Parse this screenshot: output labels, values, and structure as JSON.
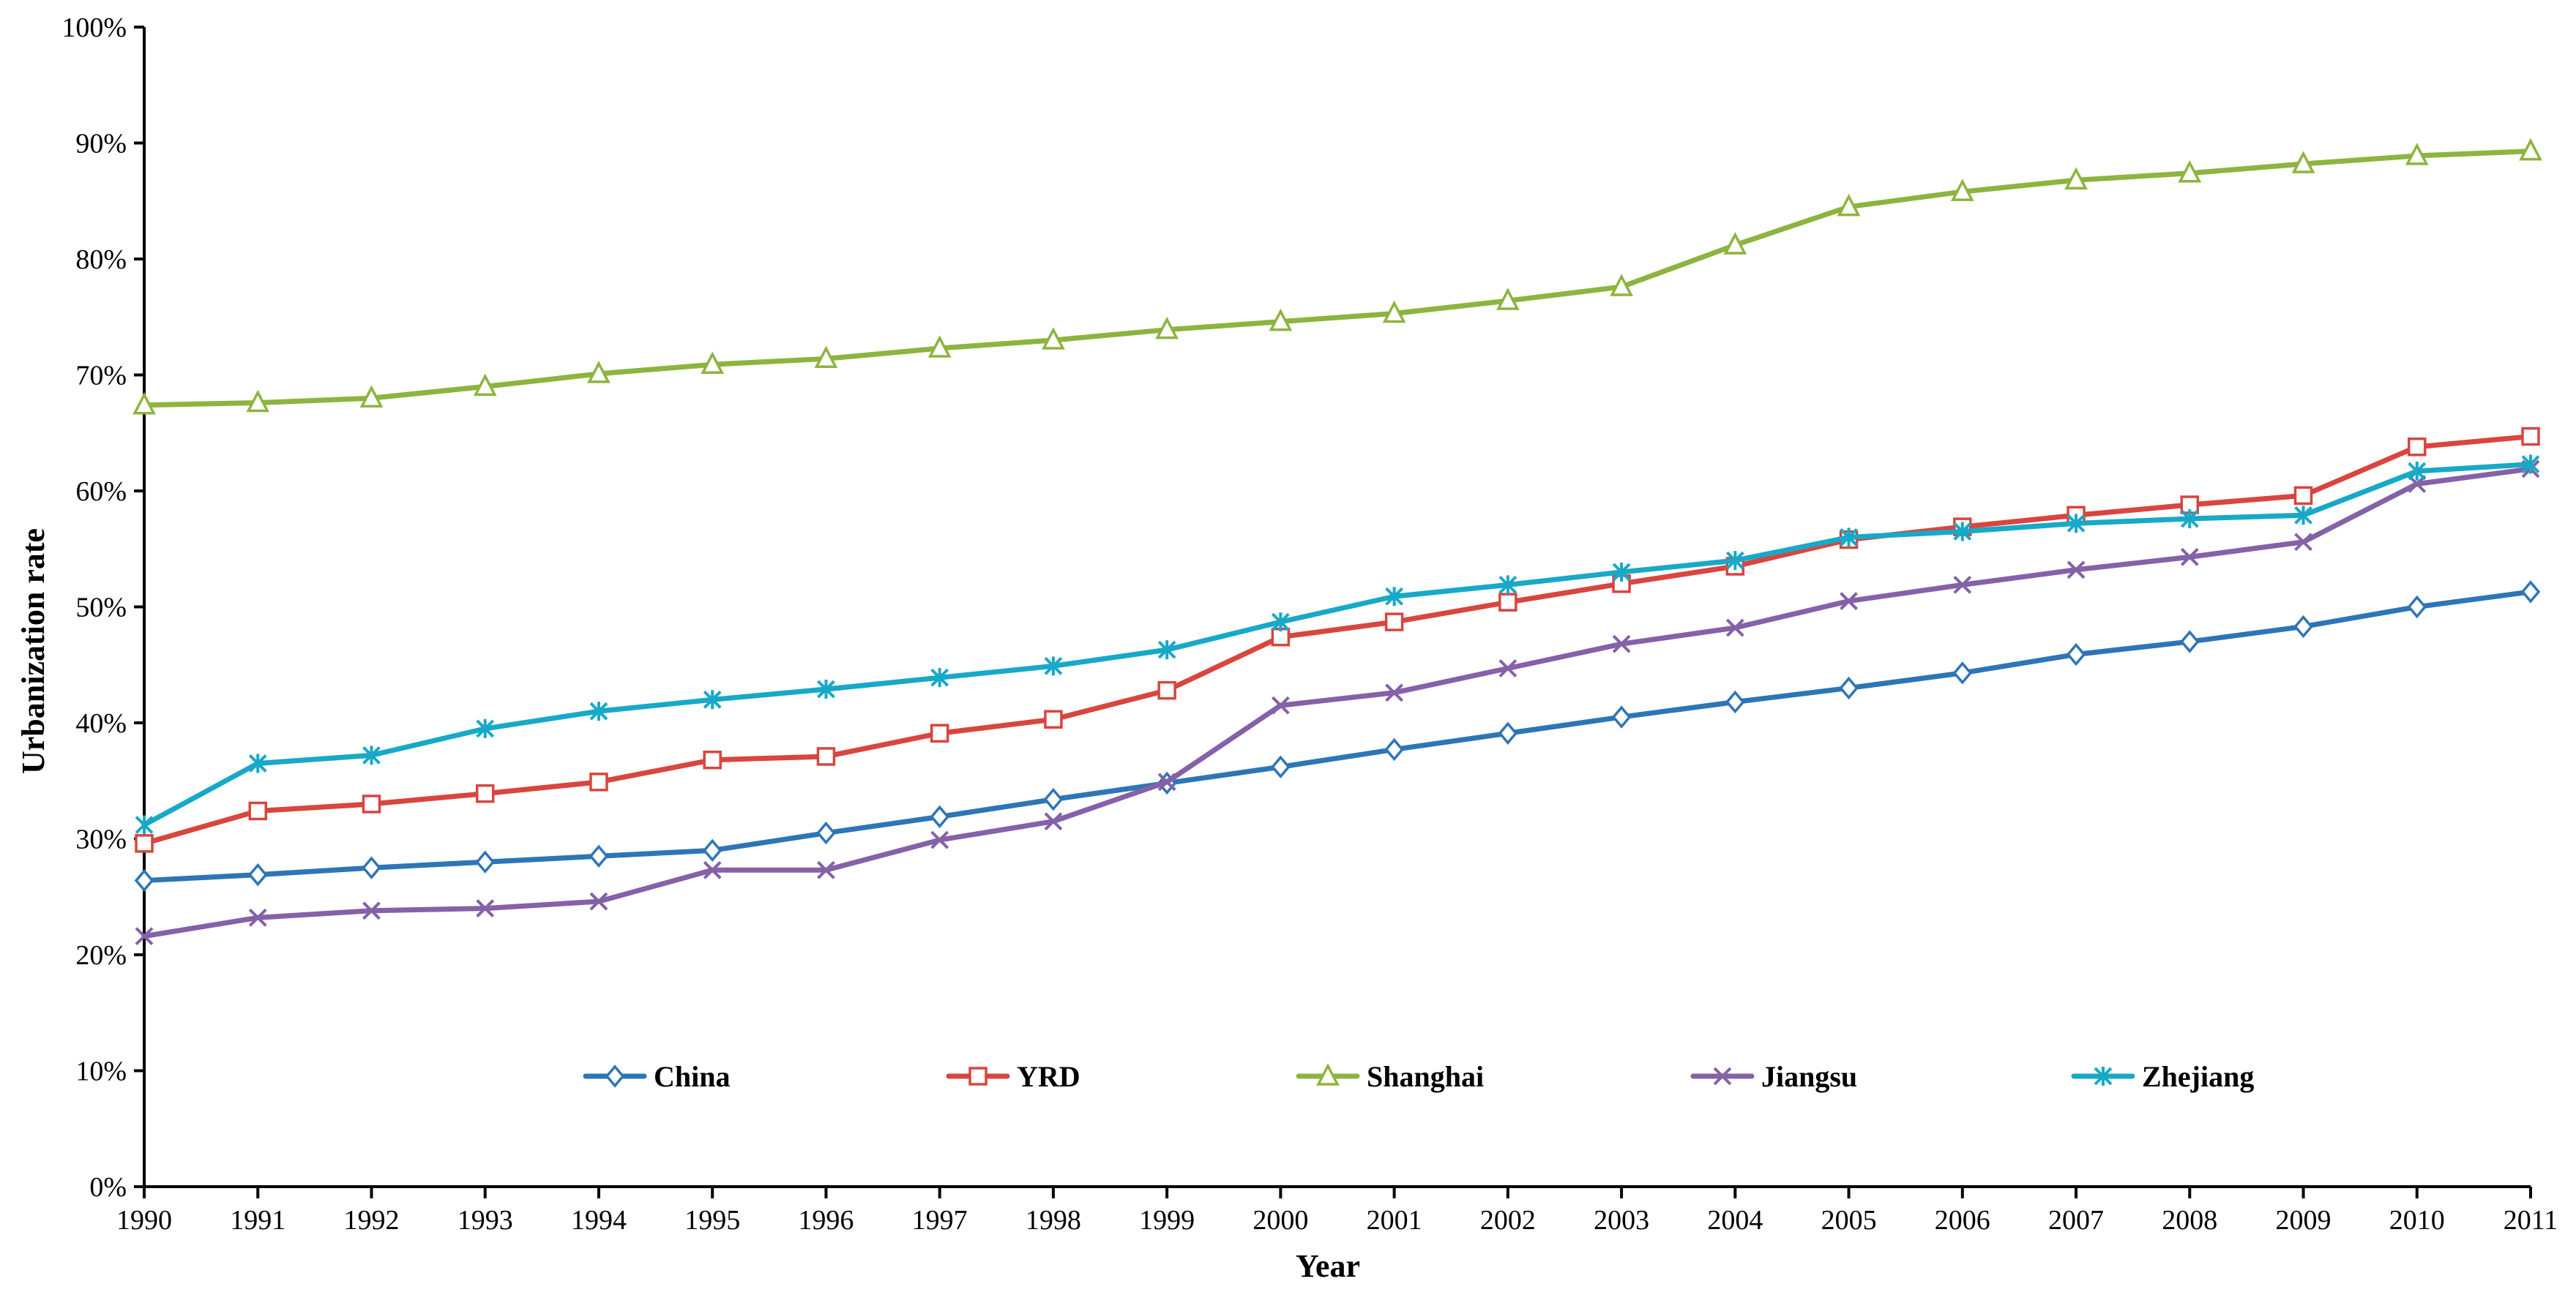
{
  "chart_data": {
    "type": "line",
    "title": "",
    "xlabel": "Year",
    "ylabel": "Urbanization rate",
    "ylim": [
      0,
      100
    ],
    "ytick_step": 10,
    "yticks": [
      "0%",
      "10%",
      "20%",
      "30%",
      "40%",
      "50%",
      "60%",
      "70%",
      "80%",
      "90%",
      "100%"
    ],
    "grid": false,
    "legend_position": "bottom-center inside",
    "categories": [
      "1990",
      "1991",
      "1992",
      "1993",
      "1994",
      "1995",
      "1996",
      "1997",
      "1998",
      "1999",
      "2000",
      "2001",
      "2002",
      "2003",
      "2004",
      "2005",
      "2006",
      "2007",
      "2008",
      "2009",
      "2010",
      "2011"
    ],
    "series": [
      {
        "name": "China",
        "color": "#2e75b6",
        "marker": "diamond",
        "values": [
          26.4,
          26.9,
          27.5,
          28.0,
          28.5,
          29.0,
          30.5,
          31.9,
          33.4,
          34.8,
          36.2,
          37.7,
          39.1,
          40.5,
          41.8,
          43.0,
          44.3,
          45.9,
          47.0,
          48.3,
          50.0,
          51.3
        ]
      },
      {
        "name": "YRD",
        "color": "#d9453f",
        "marker": "square",
        "values": [
          29.6,
          32.4,
          33.0,
          33.9,
          34.9,
          36.8,
          37.1,
          39.1,
          40.3,
          42.8,
          47.4,
          48.7,
          50.4,
          52.0,
          53.5,
          55.8,
          56.9,
          57.9,
          58.8,
          59.6,
          63.8,
          64.7
        ]
      },
      {
        "name": "Shanghai",
        "color": "#8db43f",
        "marker": "triangle",
        "values": [
          67.4,
          67.6,
          68.0,
          69.0,
          70.1,
          70.9,
          71.4,
          72.3,
          73.0,
          73.9,
          74.6,
          75.3,
          76.4,
          77.6,
          81.2,
          84.5,
          85.8,
          86.8,
          87.4,
          88.2,
          88.9,
          89.3
        ]
      },
      {
        "name": "Jiangsu",
        "color": "#8561a8",
        "marker": "x",
        "values": [
          21.6,
          23.2,
          23.8,
          24.0,
          24.6,
          27.3,
          27.3,
          29.9,
          31.5,
          34.9,
          41.5,
          42.6,
          44.7,
          46.8,
          48.2,
          50.5,
          51.9,
          53.2,
          54.3,
          55.6,
          60.6,
          61.9
        ]
      },
      {
        "name": "Zhejiang",
        "color": "#17a9c7",
        "marker": "asterisk",
        "values": [
          31.2,
          36.5,
          37.2,
          39.5,
          41.0,
          42.0,
          42.9,
          43.9,
          44.9,
          46.3,
          48.7,
          50.9,
          51.9,
          53.0,
          54.0,
          56.0,
          56.5,
          57.2,
          57.6,
          57.9,
          61.7,
          62.3
        ]
      }
    ]
  }
}
